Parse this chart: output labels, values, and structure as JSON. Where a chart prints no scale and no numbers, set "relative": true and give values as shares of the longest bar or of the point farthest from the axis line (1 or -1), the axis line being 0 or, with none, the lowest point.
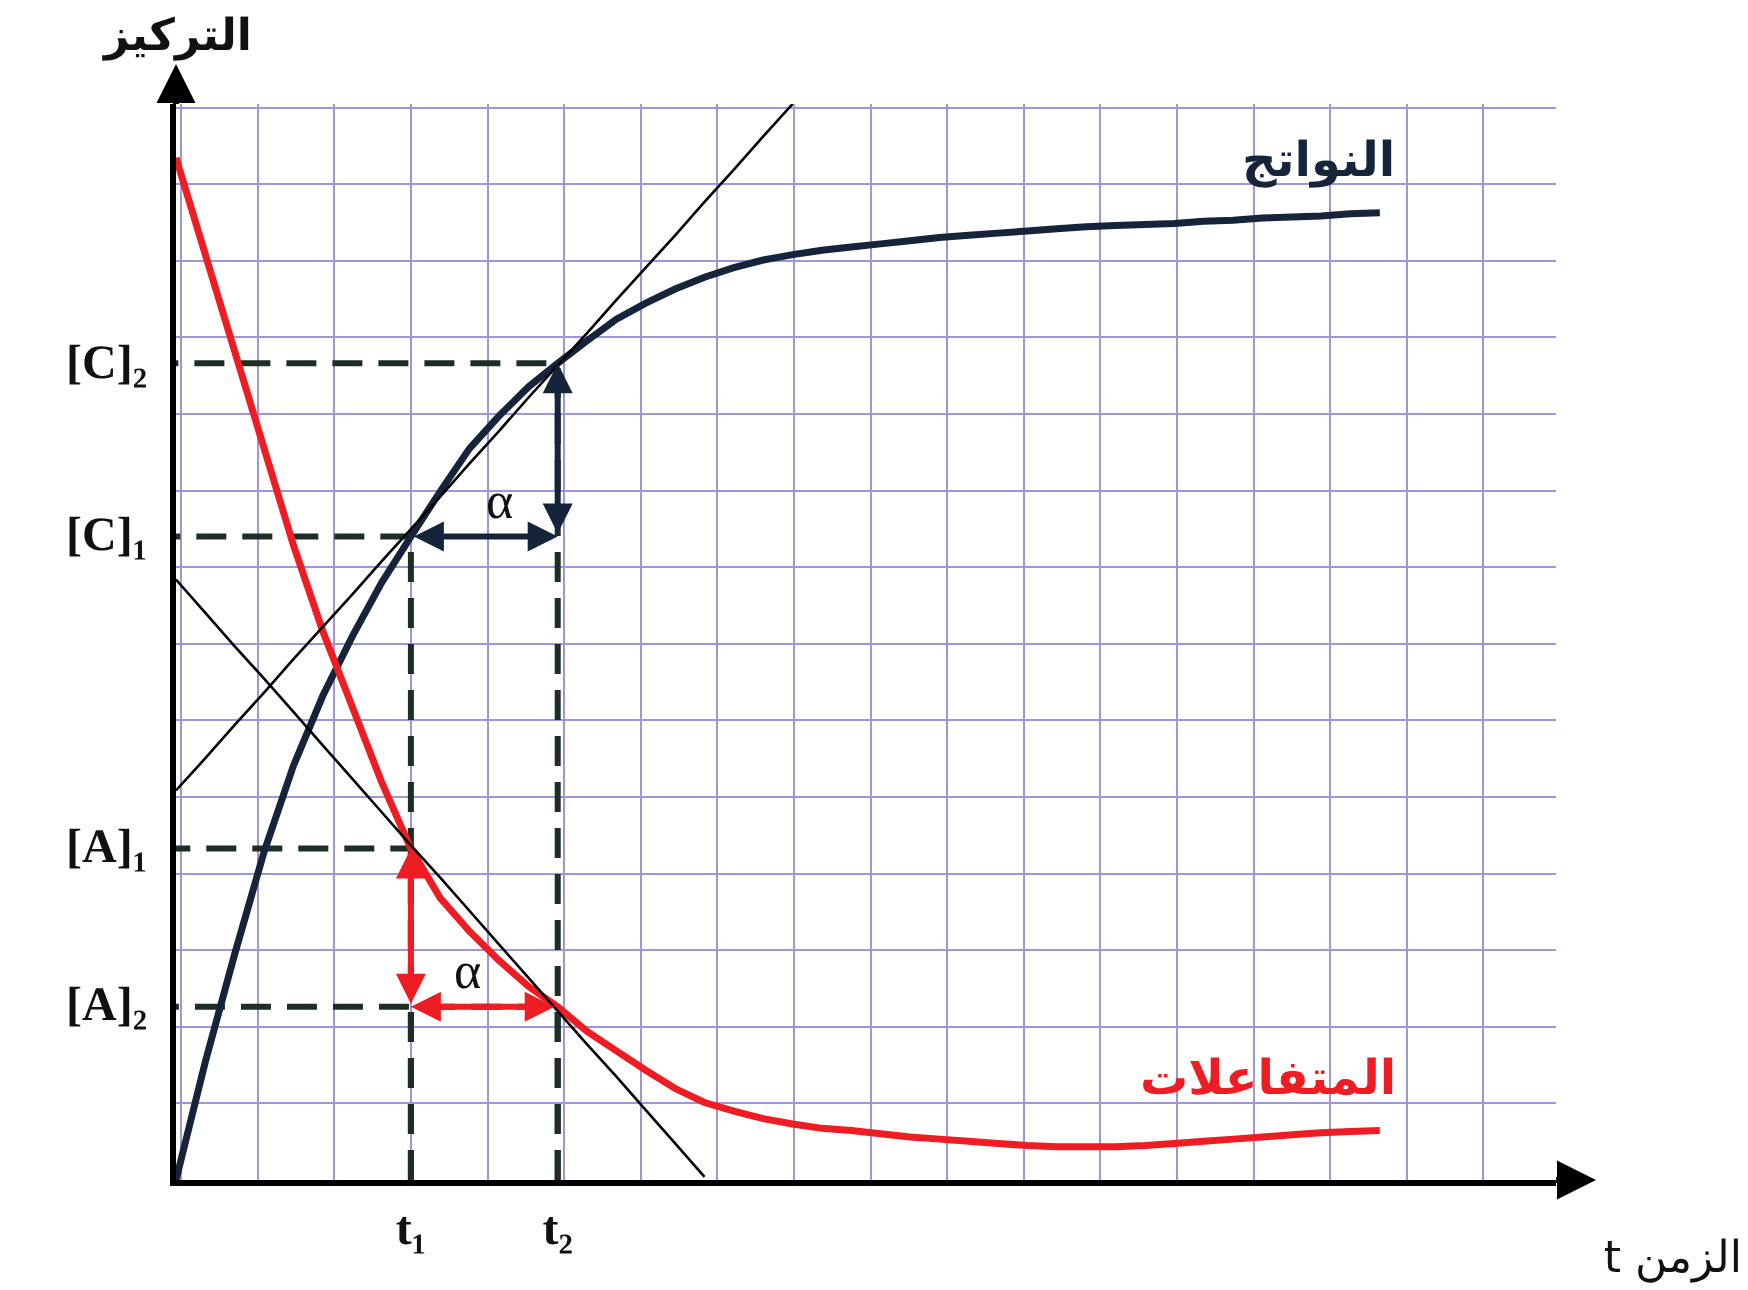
{
  "chart_data": {
    "type": "line",
    "relative": true,
    "xlabel": "الزمن t",
    "ylabel": "التركيز",
    "categories": [
      null,
      null,
      null,
      null,
      null,
      null,
      null,
      null,
      "t₁",
      null,
      null,
      null,
      null,
      "t₂",
      null,
      null,
      null,
      null,
      null,
      null,
      null,
      null,
      null,
      null,
      null,
      null,
      null,
      null,
      null,
      null,
      null,
      null,
      null,
      null,
      null,
      null,
      null,
      null,
      null,
      null,
      null,
      null,
      null,
      null,
      null,
      null,
      null,
      null
    ],
    "series": [
      {
        "name": "النواتج",
        "color": "#15243a",
        "values": [
          0,
          0.11,
          0.21,
          0.305,
          0.385,
          0.45,
          0.505,
          0.555,
          0.598,
          0.64,
          0.68,
          0.71,
          0.737,
          0.759,
          0.78,
          0.8,
          0.815,
          0.828,
          0.839,
          0.848,
          0.855,
          0.86,
          0.864,
          0.867,
          0.87,
          0.873,
          0.876,
          0.878,
          0.88,
          0.882,
          0.884,
          0.886,
          0.887,
          0.888,
          0.889,
          0.891,
          0.892,
          0.894,
          0.895,
          0.896,
          0.898,
          0.899,
          null,
          null,
          null,
          null,
          null,
          null
        ]
      },
      {
        "name": "المتفاعلات",
        "color": "#ee1d23",
        "values": [
          0.95,
          0.86,
          0.77,
          0.68,
          0.59,
          0.51,
          0.44,
          0.37,
          0.308,
          0.262,
          0.231,
          0.204,
          0.18,
          0.161,
          0.138,
          0.12,
          0.102,
          0.085,
          0.072,
          0.064,
          0.057,
          0.052,
          0.048,
          0.046,
          0.043,
          0.04,
          0.038,
          0.036,
          0.034,
          0.032,
          0.031,
          0.031,
          0.031,
          0.032,
          0.034,
          0.036,
          0.038,
          0.04,
          0.042,
          0.044,
          0.045,
          0.046,
          null,
          null,
          null,
          null,
          null,
          null
        ]
      },
      {
        "color": "#000000",
        "values": [
          0.362,
          0.392,
          0.423,
          0.453,
          0.484,
          0.514,
          0.544,
          0.575,
          0.605,
          0.635,
          0.666,
          0.696,
          0.727,
          0.757,
          0.787,
          0.818,
          0.848,
          0.878,
          0.909,
          0.939,
          0.97,
          1.0,
          null,
          null,
          null,
          null,
          null,
          null,
          null,
          null,
          null,
          null,
          null,
          null,
          null,
          null,
          null,
          null,
          null,
          null,
          null,
          null,
          null,
          null,
          null,
          null,
          null,
          null
        ]
      },
      {
        "color": "#000000",
        "values": [
          0.558,
          0.527,
          0.496,
          0.466,
          0.435,
          0.404,
          0.373,
          0.342,
          0.311,
          0.281,
          0.25,
          0.219,
          0.188,
          0.157,
          0.126,
          0.096,
          0.065,
          0.034,
          0.003,
          null,
          null,
          null,
          null,
          null,
          null,
          null,
          null,
          null,
          null,
          null,
          null,
          null,
          null,
          null,
          null,
          null,
          null,
          null,
          null,
          null,
          null,
          null,
          null,
          null,
          null,
          null,
          null,
          null
        ]
      }
    ],
    "ref_lines": [
      {
        "axis": "y",
        "value": 0.759,
        "label": "[C]₂",
        "color": "#1f2e25",
        "line_style": "dashed"
      },
      {
        "axis": "y",
        "value": 0.598,
        "label": "[C]₁",
        "color": "#1f2e25",
        "line_style": "dashed"
      },
      {
        "axis": "y",
        "value": 0.308,
        "label": "[A]₁",
        "color": "#1f2e25",
        "line_style": "dashed"
      },
      {
        "axis": "y",
        "value": 0.161,
        "label": "[A]₂",
        "color": "#1f2e25",
        "line_style": "dashed"
      }
    ],
    "annotations": [
      {
        "text": "α",
        "x": "t₁",
        "y": 0.598
      },
      {
        "text": "α",
        "x": "t₂",
        "y": 0.161
      }
    ],
    "grid": true,
    "legend": false
  }
}
